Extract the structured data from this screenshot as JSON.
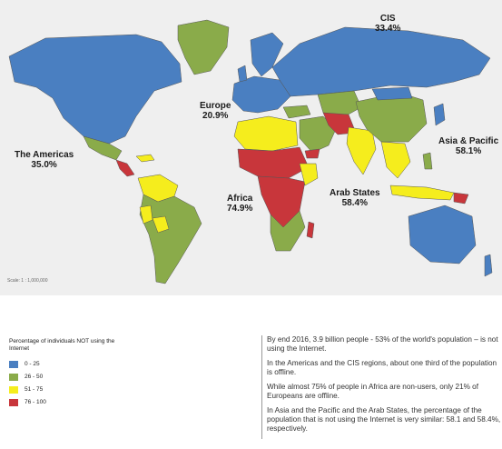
{
  "map": {
    "scale_text": "Scale: 1 : 1,000,000",
    "regions": [
      {
        "name": "CIS",
        "percent": "33.4%"
      },
      {
        "name": "Europe",
        "percent": "20.9%"
      },
      {
        "name": "The Americas",
        "percent": "35.0%"
      },
      {
        "name": "Asia & Pacific",
        "percent": "58.1%"
      },
      {
        "name": "Africa",
        "percent": "74.9%"
      },
      {
        "name": "Arab States",
        "percent": "58.4%"
      }
    ],
    "colors": {
      "band_0_25": "#4a7fc1",
      "band_26_50": "#8aab4a",
      "band_51_75": "#f5ed1d",
      "band_76_100": "#c8363b"
    }
  },
  "legend": {
    "title": "Percentage of individuals NOT using the Internet",
    "items": [
      {
        "label": "0 - 25",
        "color": "#4a7fc1"
      },
      {
        "label": "26 - 50",
        "color": "#8aab4a"
      },
      {
        "label": "51 - 75",
        "color": "#f5ed1d"
      },
      {
        "label": "76 - 100",
        "color": "#c8363b"
      }
    ]
  },
  "notes": [
    "By end 2016, 3.9 billion people - 53% of the world's population – is not using the Internet.",
    "In the Americas and the CIS regions, about one third of the population is offline.",
    "While almost 75% of people in Africa are non-users, only 21% of Europeans are offline.",
    "In Asia and the Pacific and the Arab States, the percentage of the population that is not using the Internet is very similar: 58.1 and 58.4%, respectively."
  ]
}
